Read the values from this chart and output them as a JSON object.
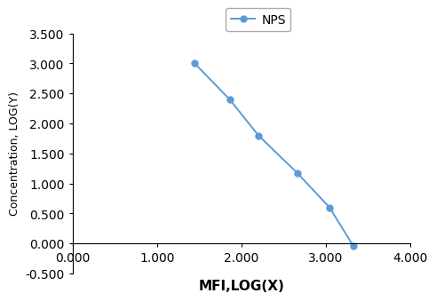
{
  "x": [
    1.447,
    1.863,
    2.204,
    2.663,
    3.045,
    3.33
  ],
  "y": [
    3.0,
    2.398,
    1.799,
    1.176,
    0.602,
    -0.046
  ],
  "line_color": "#5b9bd5",
  "marker": "o",
  "marker_size": 5,
  "legend_label": "NPS",
  "xlabel": "MFI,LOG(X)",
  "ylabel": "Concentration, LOG(Y)",
  "xlim": [
    0.0,
    4.0
  ],
  "ylim": [
    -0.5,
    3.5
  ],
  "xticks": [
    0.0,
    1.0,
    2.0,
    3.0,
    4.0
  ],
  "yticks": [
    -0.5,
    0.0,
    0.5,
    1.0,
    1.5,
    2.0,
    2.5,
    3.0,
    3.5
  ],
  "xtick_labels": [
    "0.000",
    "1.000",
    "2.000",
    "3.000",
    "4.000"
  ],
  "ytick_labels": [
    "-0.500",
    "0.000",
    "0.500",
    "1.000",
    "1.500",
    "2.000",
    "2.500",
    "3.000",
    "3.500"
  ],
  "background_color": "#ffffff",
  "xlabel_fontsize": 11,
  "ylabel_fontsize": 9,
  "tick_fontsize": 8,
  "legend_fontsize": 10
}
